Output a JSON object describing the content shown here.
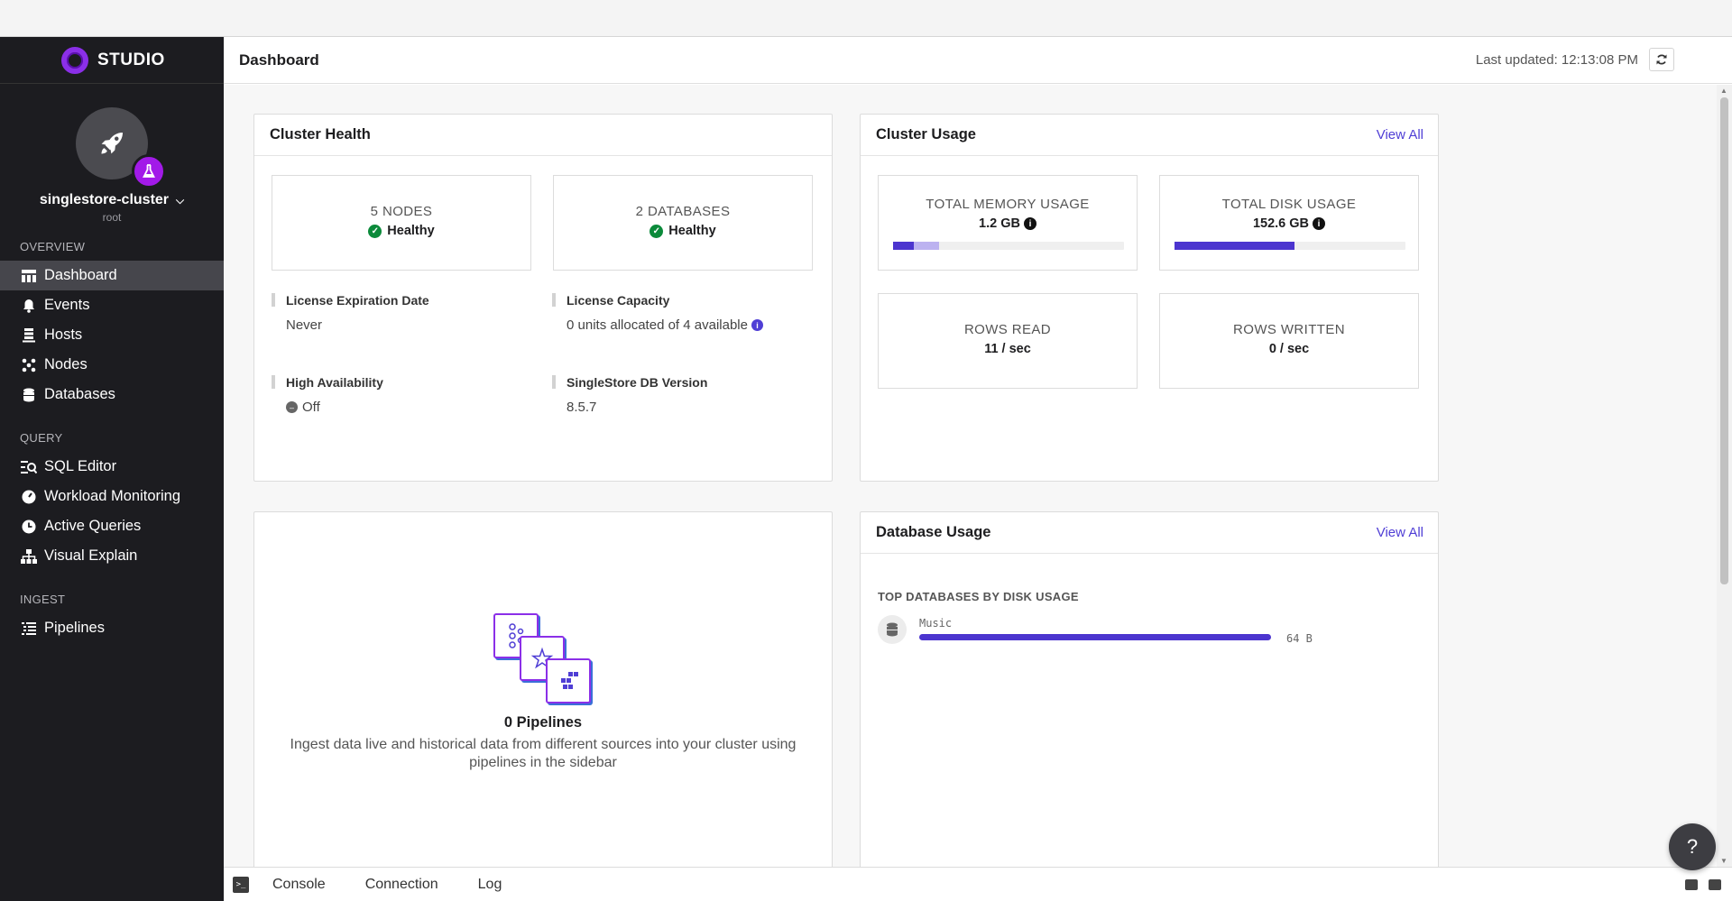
{
  "app": {
    "brand": "STUDIO"
  },
  "cluster": {
    "name": "singlestore-cluster",
    "user": "root"
  },
  "sidebar": {
    "sections": [
      {
        "label": "OVERVIEW",
        "items": [
          "Dashboard",
          "Events",
          "Hosts",
          "Nodes",
          "Databases"
        ]
      },
      {
        "label": "QUERY",
        "items": [
          "SQL Editor",
          "Workload Monitoring",
          "Active Queries",
          "Visual Explain"
        ]
      },
      {
        "label": "INGEST",
        "items": [
          "Pipelines"
        ]
      }
    ],
    "active": "Dashboard"
  },
  "header": {
    "title": "Dashboard",
    "last_updated": "Last updated: 12:13:08 PM"
  },
  "cluster_health": {
    "title": "Cluster Health",
    "nodes": {
      "label": "5 NODES",
      "status": "Healthy"
    },
    "databases": {
      "label": "2 DATABASES",
      "status": "Healthy"
    },
    "license_expiration": {
      "label": "License Expiration Date",
      "value": "Never"
    },
    "license_capacity": {
      "label": "License Capacity",
      "value": "0 units allocated of 4 available"
    },
    "high_availability": {
      "label": "High Availability",
      "value": "Off"
    },
    "db_version": {
      "label": "SingleStore DB Version",
      "value": "8.5.7"
    }
  },
  "cluster_usage": {
    "title": "Cluster Usage",
    "view_all": "View All",
    "memory": {
      "label": "TOTAL MEMORY USAGE",
      "value": "1.2 GB",
      "fraction_dark": 0.09,
      "fraction_light": 0.11
    },
    "disk": {
      "label": "TOTAL DISK USAGE",
      "value": "152.6 GB",
      "fraction": 0.52
    },
    "rows_read": {
      "label": "ROWS READ",
      "value": "11 / sec"
    },
    "rows_written": {
      "label": "ROWS WRITTEN",
      "value": "0 / sec"
    }
  },
  "pipelines": {
    "title": "0 Pipelines",
    "description": "Ingest data live and historical data from different sources into your cluster using pipelines in the sidebar"
  },
  "database_usage": {
    "title": "Database Usage",
    "view_all": "View All",
    "subtitle": "TOP DATABASES BY DISK USAGE",
    "items": [
      {
        "name": "Music",
        "size": "64 B",
        "fraction": 1.0
      }
    ]
  },
  "footer": {
    "tabs": [
      "Console",
      "Connection",
      "Log"
    ]
  },
  "help": "?",
  "colors": {
    "accent": "#4f3ed5",
    "brand": "#8b2fe8",
    "healthy": "#0b8a3a",
    "sidebar_bg": "#1c1c20"
  }
}
